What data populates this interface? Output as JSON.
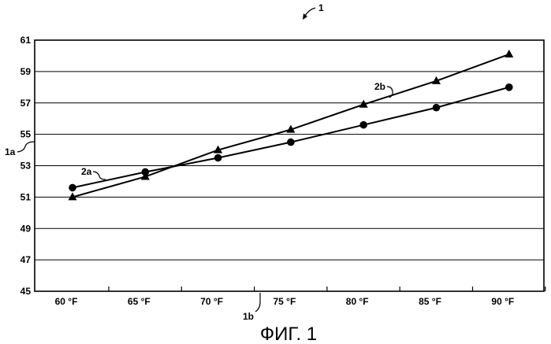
{
  "chart_data": {
    "type": "line",
    "x": [
      "60 °F",
      "65 °F",
      "70 °F",
      "75 °F",
      "80 °F",
      "85 °F",
      "90 °F"
    ],
    "yticks": [
      "45",
      "47",
      "49",
      "51",
      "53",
      "55",
      "57",
      "59",
      "61"
    ],
    "ylim": [
      45,
      61
    ],
    "grid": true,
    "series": [
      {
        "name": "",
        "marker": "circle",
        "values": [
          51.6,
          52.6,
          53.5,
          54.5,
          55.6,
          56.7,
          58.0
        ]
      },
      {
        "name": "",
        "marker": "triangle",
        "values": [
          51.0,
          52.3,
          54.0,
          55.3,
          56.9,
          58.4,
          60.1
        ]
      }
    ],
    "annotations": {
      "figure_ref": "1",
      "axis_y_ref": "1a",
      "axis_x_ref": "1b",
      "series_circle_ref": "2a",
      "series_triangle_ref": "2b"
    },
    "caption": "ФИГ. 1"
  }
}
